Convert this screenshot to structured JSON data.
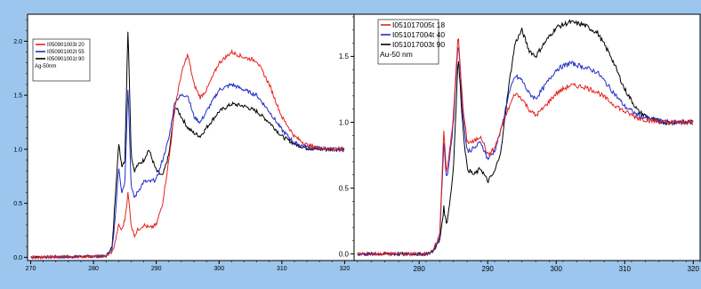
{
  "chart_data": [
    {
      "type": "line",
      "xlabel": "",
      "ylabel": "",
      "xlim": [
        269.5,
        321.5
      ],
      "ylim": [
        -0.03,
        2.25
      ],
      "xticks": [
        "270",
        "280",
        "290",
        "300",
        "310",
        "320"
      ],
      "yticks": [
        "0.0",
        "0.5",
        "1.0",
        "1.5",
        "2.0"
      ],
      "legend_note": "Ag-50nm",
      "legend_position": "top-left",
      "grid": false,
      "series": [
        {
          "name": "I050901003t 20",
          "color": "#e8211e",
          "x": [
            270,
            282,
            283,
            283.5,
            284,
            284.5,
            285,
            285.5,
            286,
            286.5,
            287,
            288,
            289,
            290,
            291,
            292,
            293,
            294,
            295,
            296,
            297,
            298,
            300,
            302,
            304,
            306,
            308,
            310,
            312,
            314,
            316,
            318,
            320
          ],
          "y": [
            0.0,
            0.01,
            0.05,
            0.15,
            0.3,
            0.25,
            0.35,
            0.6,
            0.3,
            0.2,
            0.25,
            0.3,
            0.27,
            0.3,
            0.5,
            0.9,
            1.4,
            1.7,
            1.88,
            1.6,
            1.48,
            1.55,
            1.8,
            1.9,
            1.85,
            1.82,
            1.6,
            1.3,
            1.12,
            1.04,
            1.01,
            1.0,
            1.0
          ]
        },
        {
          "name": "I050901002t 55",
          "color": "#1f2ec8",
          "x": [
            270,
            282,
            283,
            283.5,
            284,
            284.5,
            285,
            285.5,
            286,
            286.5,
            287,
            288,
            289,
            290,
            291,
            292,
            293,
            294,
            295,
            296,
            297,
            298,
            300,
            302,
            304,
            306,
            308,
            310,
            312,
            314,
            316,
            318,
            320
          ],
          "y": [
            0.0,
            0.01,
            0.08,
            0.4,
            0.85,
            0.6,
            0.7,
            1.6,
            0.65,
            0.55,
            0.6,
            0.7,
            0.7,
            0.72,
            0.9,
            1.1,
            1.45,
            1.5,
            1.5,
            1.3,
            1.25,
            1.35,
            1.55,
            1.6,
            1.55,
            1.5,
            1.35,
            1.18,
            1.06,
            1.02,
            1.01,
            1.0,
            1.0
          ]
        },
        {
          "name": "I050901001t 90",
          "color": "#000000",
          "x": [
            270,
            282,
            283,
            283.5,
            284,
            284.5,
            285,
            285.5,
            286,
            286.5,
            287,
            288,
            288.8,
            290,
            291,
            292,
            293,
            294,
            295,
            296,
            297,
            298,
            300,
            302,
            304,
            306,
            308,
            310,
            312,
            314,
            316,
            318,
            320
          ],
          "y": [
            0.0,
            0.01,
            0.1,
            0.6,
            1.05,
            0.85,
            0.9,
            2.15,
            0.95,
            0.8,
            0.85,
            0.9,
            1.0,
            0.8,
            0.75,
            0.95,
            1.4,
            1.3,
            1.2,
            1.15,
            1.12,
            1.2,
            1.35,
            1.42,
            1.4,
            1.35,
            1.25,
            1.12,
            1.05,
            1.01,
            1.0,
            1.0,
            1.0
          ]
        }
      ]
    },
    {
      "type": "line",
      "xlabel": "",
      "ylabel": "",
      "xlim": [
        270.5,
        321
      ],
      "ylim": [
        -0.05,
        1.82
      ],
      "xticks": [
        "280",
        "290",
        "300",
        "310",
        "320"
      ],
      "yticks": [
        "0.0",
        "0.5",
        "1.0",
        "1.5"
      ],
      "legend_note": "Au-50 nm",
      "legend_position": "top-left",
      "grid": false,
      "series": [
        {
          "name": "I051017005t 18",
          "color": "#e8211e",
          "x": [
            271,
            281,
            282,
            283,
            283.6,
            284,
            284.6,
            285,
            285.7,
            286.4,
            287,
            288,
            289,
            290,
            291,
            292,
            293,
            294,
            295,
            296,
            297,
            298,
            300,
            302,
            304,
            306,
            308,
            310,
            312,
            314,
            316,
            318,
            320
          ],
          "y": [
            0.0,
            0.0,
            0.02,
            0.15,
            0.95,
            0.6,
            0.85,
            1.05,
            1.67,
            1.1,
            0.85,
            0.85,
            0.9,
            0.75,
            0.8,
            0.95,
            1.1,
            1.22,
            1.18,
            1.1,
            1.05,
            1.1,
            1.22,
            1.28,
            1.27,
            1.23,
            1.15,
            1.08,
            1.03,
            1.01,
            1.0,
            1.0,
            1.0
          ]
        },
        {
          "name": "I051017004t 40",
          "color": "#1f2ec8",
          "x": [
            271,
            281,
            282,
            283,
            283.6,
            284,
            284.6,
            285,
            285.7,
            286.4,
            287,
            288,
            289,
            290,
            291,
            292,
            293,
            294,
            295,
            296,
            297,
            298,
            300,
            302,
            304,
            306,
            308,
            310,
            312,
            314,
            316,
            318,
            320
          ],
          "y": [
            0.0,
            0.0,
            0.02,
            0.12,
            0.85,
            0.55,
            0.8,
            1.0,
            1.63,
            1.05,
            0.78,
            0.8,
            0.85,
            0.72,
            0.78,
            0.95,
            1.2,
            1.35,
            1.32,
            1.22,
            1.18,
            1.25,
            1.4,
            1.45,
            1.42,
            1.38,
            1.25,
            1.12,
            1.05,
            1.02,
            1.0,
            1.0,
            1.0
          ]
        },
        {
          "name": "I051017003t 90",
          "color": "#000000",
          "x": [
            271,
            281,
            282,
            283,
            283.6,
            284,
            284.6,
            285,
            285.7,
            286.4,
            287,
            288,
            289,
            290,
            291,
            292,
            293,
            294,
            295,
            296,
            297,
            298,
            300,
            302,
            304,
            306,
            308,
            310,
            312,
            314,
            316,
            318,
            320
          ],
          "y": [
            0.0,
            0.0,
            0.02,
            0.1,
            0.35,
            0.22,
            0.45,
            0.65,
            1.5,
            0.95,
            0.65,
            0.6,
            0.65,
            0.55,
            0.62,
            0.8,
            1.25,
            1.6,
            1.7,
            1.55,
            1.5,
            1.58,
            1.72,
            1.76,
            1.74,
            1.68,
            1.5,
            1.25,
            1.08,
            1.02,
            1.0,
            1.0,
            1.0
          ]
        }
      ]
    }
  ]
}
